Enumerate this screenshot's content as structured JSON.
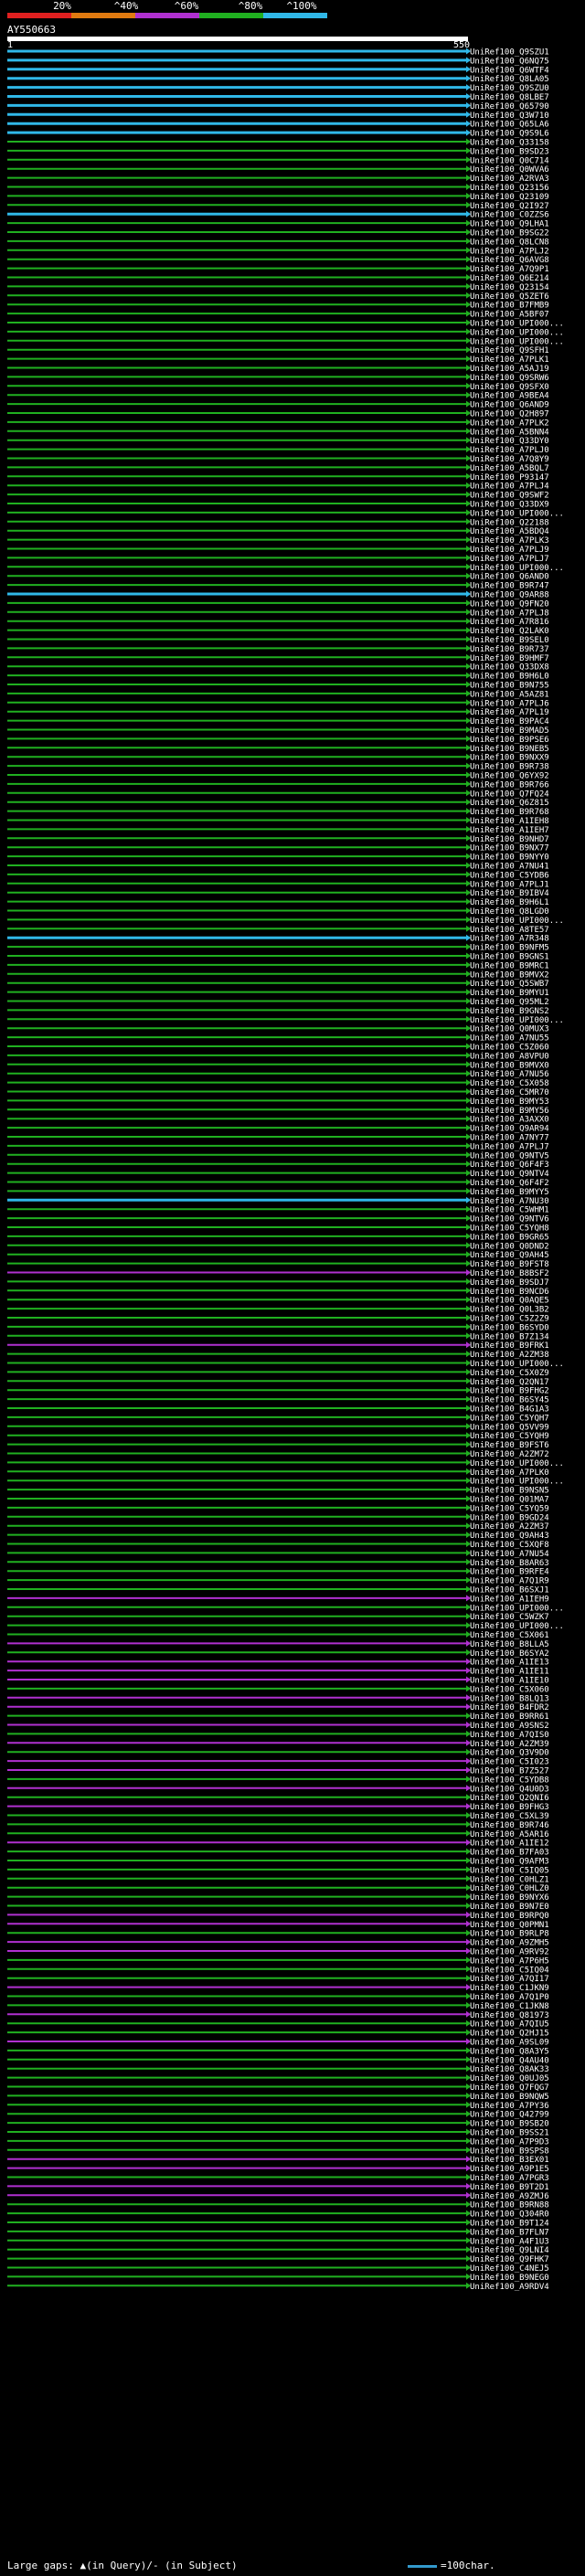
{
  "scale": {
    "ticks": [
      "20%",
      "^40%",
      "^60%",
      "^80%",
      "^100%"
    ],
    "colors": [
      "#e02020",
      "#e07a10",
      "#b030d0",
      "#20b020",
      "#30b8e8"
    ]
  },
  "query": {
    "name": "AY550663",
    "start": "1",
    "end": "550"
  },
  "hits": [
    {
      "label": "UniRef100_Q9SZU1",
      "c": 4
    },
    {
      "label": "UniRef100_Q6NQ75",
      "c": 4
    },
    {
      "label": "UniRef100_Q6WTF4",
      "c": 4
    },
    {
      "label": "UniRef100_Q8LA05",
      "c": 4
    },
    {
      "label": "UniRef100_Q9SZU0",
      "c": 4
    },
    {
      "label": "UniRef100_Q8LBE7",
      "c": 4
    },
    {
      "label": "UniRef100_Q65790",
      "c": 4
    },
    {
      "label": "UniRef100_Q3W710",
      "c": 4
    },
    {
      "label": "UniRef100_Q65LA6",
      "c": 4
    },
    {
      "label": "UniRef100_Q9S9L6",
      "c": 4
    },
    {
      "label": "UniRef100_Q33158",
      "c": 3
    },
    {
      "label": "UniRef100_B9SD23",
      "c": 3
    },
    {
      "label": "UniRef100_Q0C714",
      "c": 3
    },
    {
      "label": "UniRef100_Q0WVA6",
      "c": 3
    },
    {
      "label": "UniRef100_A2RVA3",
      "c": 3
    },
    {
      "label": "UniRef100_Q23156",
      "c": 3
    },
    {
      "label": "UniRef100_Q23109",
      "c": 3
    },
    {
      "label": "UniRef100_Q2I927",
      "c": 3
    },
    {
      "label": "UniRef100_C0ZZS6",
      "c": 4
    },
    {
      "label": "UniRef100_Q9LHA1",
      "c": 3
    },
    {
      "label": "UniRef100_B9SG22",
      "c": 3
    },
    {
      "label": "UniRef100_Q8LCN8",
      "c": 3
    },
    {
      "label": "UniRef100_A7PLJ2",
      "c": 3
    },
    {
      "label": "UniRef100_Q6AVG8",
      "c": 3
    },
    {
      "label": "UniRef100_A7Q9P1",
      "c": 3
    },
    {
      "label": "UniRef100_Q6E214",
      "c": 3
    },
    {
      "label": "UniRef100_Q23154",
      "c": 3
    },
    {
      "label": "UniRef100_Q5ZET6",
      "c": 3
    },
    {
      "label": "UniRef100_B7FMB9",
      "c": 3
    },
    {
      "label": "UniRef100_A5BF07",
      "c": 3
    },
    {
      "label": "UniRef100_UPI000...",
      "c": 3
    },
    {
      "label": "UniRef100_UPI000...",
      "c": 3
    },
    {
      "label": "UniRef100_UPI000...",
      "c": 3
    },
    {
      "label": "UniRef100_Q9SFH1",
      "c": 3
    },
    {
      "label": "UniRef100_A7PLK1",
      "c": 3
    },
    {
      "label": "UniRef100_A5AJ19",
      "c": 3
    },
    {
      "label": "UniRef100_Q9SRW6",
      "c": 3
    },
    {
      "label": "UniRef100_Q9SFX0",
      "c": 3
    },
    {
      "label": "UniRef100_A9BEA4",
      "c": 3
    },
    {
      "label": "UniRef100_Q6AND9",
      "c": 3
    },
    {
      "label": "UniRef100_Q2H897",
      "c": 3
    },
    {
      "label": "UniRef100_A7PLK2",
      "c": 3
    },
    {
      "label": "UniRef100_A5BNN4",
      "c": 3
    },
    {
      "label": "UniRef100_Q33DY0",
      "c": 3
    },
    {
      "label": "UniRef100_A7PLJ0",
      "c": 3
    },
    {
      "label": "UniRef100_A7Q8Y9",
      "c": 3
    },
    {
      "label": "UniRef100_A5BQL7",
      "c": 3
    },
    {
      "label": "UniRef100_P93147",
      "c": 3
    },
    {
      "label": "UniRef100_A7PLJ4",
      "c": 3
    },
    {
      "label": "UniRef100_Q9SWF2",
      "c": 3
    },
    {
      "label": "UniRef100_Q33DX9",
      "c": 3
    },
    {
      "label": "UniRef100_UPI000...",
      "c": 3
    },
    {
      "label": "UniRef100_Q22188",
      "c": 3
    },
    {
      "label": "UniRef100_A5BDQ4",
      "c": 3
    },
    {
      "label": "UniRef100_A7PLK3",
      "c": 3
    },
    {
      "label": "UniRef100_A7PLJ9",
      "c": 3
    },
    {
      "label": "UniRef100_A7PLJ7",
      "c": 3
    },
    {
      "label": "UniRef100_UPI000...",
      "c": 3
    },
    {
      "label": "UniRef100_Q6AND0",
      "c": 3
    },
    {
      "label": "UniRef100_B9R747",
      "c": 3
    },
    {
      "label": "UniRef100_Q9AR88",
      "c": 4
    },
    {
      "label": "UniRef100_Q9FN20",
      "c": 3
    },
    {
      "label": "UniRef100_A7PLJ8",
      "c": 3
    },
    {
      "label": "UniRef100_A7R816",
      "c": 3
    },
    {
      "label": "UniRef100_Q2LAK0",
      "c": 3
    },
    {
      "label": "UniRef100_B9SEL0",
      "c": 3
    },
    {
      "label": "UniRef100_B9R737",
      "c": 3
    },
    {
      "label": "UniRef100_B9HMF7",
      "c": 3
    },
    {
      "label": "UniRef100_Q33DX8",
      "c": 3
    },
    {
      "label": "UniRef100_B9H6L0",
      "c": 3
    },
    {
      "label": "UniRef100_B9N755",
      "c": 3
    },
    {
      "label": "UniRef100_A5AZ81",
      "c": 3
    },
    {
      "label": "UniRef100_A7PLJ6",
      "c": 3
    },
    {
      "label": "UniRef100_A7PL19",
      "c": 3
    },
    {
      "label": "UniRef100_B9PAC4",
      "c": 3
    },
    {
      "label": "UniRef100_B9MAD5",
      "c": 3
    },
    {
      "label": "UniRef100_B9PSE6",
      "c": 3
    },
    {
      "label": "UniRef100_B9NEB5",
      "c": 3
    },
    {
      "label": "UniRef100_B9NXX9",
      "c": 3
    },
    {
      "label": "UniRef100_B9R738",
      "c": 3
    },
    {
      "label": "UniRef100_Q6YX92",
      "c": 3
    },
    {
      "label": "UniRef100_B9R766",
      "c": 3
    },
    {
      "label": "UniRef100_Q7FQ24",
      "c": 3
    },
    {
      "label": "UniRef100_Q6Z815",
      "c": 3
    },
    {
      "label": "UniRef100_B9R768",
      "c": 3
    },
    {
      "label": "UniRef100_A1IEH8",
      "c": 3
    },
    {
      "label": "UniRef100_A1IEH7",
      "c": 3
    },
    {
      "label": "UniRef100_B9NHD7",
      "c": 3
    },
    {
      "label": "UniRef100_B9NX77",
      "c": 3
    },
    {
      "label": "UniRef100_B9NYY0",
      "c": 3
    },
    {
      "label": "UniRef100_A7NU41",
      "c": 3
    },
    {
      "label": "UniRef100_C5YDB6",
      "c": 3
    },
    {
      "label": "UniRef100_A7PLJ1",
      "c": 3
    },
    {
      "label": "UniRef100_B9IBV4",
      "c": 3
    },
    {
      "label": "UniRef100_B9H6L1",
      "c": 3
    },
    {
      "label": "UniRef100_Q8LGD0",
      "c": 3
    },
    {
      "label": "UniRef100_UPI000...",
      "c": 3
    },
    {
      "label": "UniRef100_A8TE57",
      "c": 3
    },
    {
      "label": "UniRef100_A7R348",
      "c": 4
    },
    {
      "label": "UniRef100_B9NFM5",
      "c": 3
    },
    {
      "label": "UniRef100_B9GNS1",
      "c": 3
    },
    {
      "label": "UniRef100_B9MRC1",
      "c": 3
    },
    {
      "label": "UniRef100_B9MVX2",
      "c": 3
    },
    {
      "label": "UniRef100_Q5SWB7",
      "c": 3
    },
    {
      "label": "UniRef100_B9MYU1",
      "c": 3
    },
    {
      "label": "UniRef100_Q95ML2",
      "c": 3
    },
    {
      "label": "UniRef100_B9GNS2",
      "c": 3
    },
    {
      "label": "UniRef100_UPI000...",
      "c": 3
    },
    {
      "label": "UniRef100_Q0MUX3",
      "c": 3
    },
    {
      "label": "UniRef100_A7NU55",
      "c": 3
    },
    {
      "label": "UniRef100_C5Z060",
      "c": 3
    },
    {
      "label": "UniRef100_A8VPU0",
      "c": 3
    },
    {
      "label": "UniRef100_B9MVX0",
      "c": 3
    },
    {
      "label": "UniRef100_A7NU56",
      "c": 3
    },
    {
      "label": "UniRef100_C5X058",
      "c": 3
    },
    {
      "label": "UniRef100_C5MR70",
      "c": 3
    },
    {
      "label": "UniRef100_B9MY53",
      "c": 3
    },
    {
      "label": "UniRef100_B9MY56",
      "c": 3
    },
    {
      "label": "UniRef100_A3AXX0",
      "c": 3
    },
    {
      "label": "UniRef100_Q9AR94",
      "c": 3
    },
    {
      "label": "UniRef100_A7NY77",
      "c": 3
    },
    {
      "label": "UniRef100_A7PLJ7",
      "c": 3
    },
    {
      "label": "UniRef100_Q9NTV5",
      "c": 3
    },
    {
      "label": "UniRef100_Q6F4F3",
      "c": 3
    },
    {
      "label": "UniRef100_Q9NTV4",
      "c": 3
    },
    {
      "label": "UniRef100_Q6F4F2",
      "c": 3
    },
    {
      "label": "UniRef100_B9MYY5",
      "c": 3
    },
    {
      "label": "UniRef100_A7NU30",
      "c": 4
    },
    {
      "label": "UniRef100_C5WHM1",
      "c": 3
    },
    {
      "label": "UniRef100_Q9NTV6",
      "c": 3
    },
    {
      "label": "UniRef100_C5YQH8",
      "c": 3
    },
    {
      "label": "UniRef100_B9GR65",
      "c": 3
    },
    {
      "label": "UniRef100_Q0DND2",
      "c": 3
    },
    {
      "label": "UniRef100_Q9AH45",
      "c": 3
    },
    {
      "label": "UniRef100_B9FST8",
      "c": 3
    },
    {
      "label": "UniRef100_B8BSF2",
      "c": 2
    },
    {
      "label": "UniRef100_B9SDJ7",
      "c": 3
    },
    {
      "label": "UniRef100_B9NCD6",
      "c": 3
    },
    {
      "label": "UniRef100_Q0AQE5",
      "c": 3
    },
    {
      "label": "UniRef100_Q0L3B2",
      "c": 3
    },
    {
      "label": "UniRef100_C5Z2Z9",
      "c": 3
    },
    {
      "label": "UniRef100_B6SYD0",
      "c": 3
    },
    {
      "label": "UniRef100_B7Z134",
      "c": 3
    },
    {
      "label": "UniRef100_B9FRK1",
      "c": 2
    },
    {
      "label": "UniRef100_A2ZM38",
      "c": 3
    },
    {
      "label": "UniRef100_UPI000...",
      "c": 3
    },
    {
      "label": "UniRef100_C5X0Z9",
      "c": 3
    },
    {
      "label": "UniRef100_Q2QN17",
      "c": 3
    },
    {
      "label": "UniRef100_B9FHG2",
      "c": 3
    },
    {
      "label": "UniRef100_B6SY45",
      "c": 3
    },
    {
      "label": "UniRef100_B4G1A3",
      "c": 3
    },
    {
      "label": "UniRef100_C5YQH7",
      "c": 3
    },
    {
      "label": "UniRef100_Q5VV99",
      "c": 3
    },
    {
      "label": "UniRef100_C5YQH9",
      "c": 3
    },
    {
      "label": "UniRef100_B9FST6",
      "c": 3
    },
    {
      "label": "UniRef100_A2ZM72",
      "c": 3
    },
    {
      "label": "UniRef100_UPI000...",
      "c": 3
    },
    {
      "label": "UniRef100_A7PLK0",
      "c": 3
    },
    {
      "label": "UniRef100_UPI000...",
      "c": 3
    },
    {
      "label": "UniRef100_B9NSN5",
      "c": 3
    },
    {
      "label": "UniRef100_Q01MA7",
      "c": 3
    },
    {
      "label": "UniRef100_C5YQ59",
      "c": 3
    },
    {
      "label": "UniRef100_B9GD24",
      "c": 3
    },
    {
      "label": "UniRef100_A2ZM37",
      "c": 3
    },
    {
      "label": "UniRef100_Q9AH43",
      "c": 3
    },
    {
      "label": "UniRef100_C5XQF8",
      "c": 3
    },
    {
      "label": "UniRef100_A7NU54",
      "c": 3
    },
    {
      "label": "UniRef100_B8AR63",
      "c": 3
    },
    {
      "label": "UniRef100_B9RFE4",
      "c": 3
    },
    {
      "label": "UniRef100_A7Q1R9",
      "c": 3
    },
    {
      "label": "UniRef100_B6SXJ1",
      "c": 3
    },
    {
      "label": "UniRef100_A1IEH9",
      "c": 2
    },
    {
      "label": "UniRef100_UPI000...",
      "c": 3
    },
    {
      "label": "UniRef100_C5WZK7",
      "c": 3
    },
    {
      "label": "UniRef100_UPI000...",
      "c": 3
    },
    {
      "label": "UniRef100_C5X061",
      "c": 3
    },
    {
      "label": "UniRef100_B8LLA5",
      "c": 2
    },
    {
      "label": "UniRef100_B6SYA2",
      "c": 3
    },
    {
      "label": "UniRef100_A1IE13",
      "c": 2
    },
    {
      "label": "UniRef100_A1IE11",
      "c": 2
    },
    {
      "label": "UniRef100_A1IE10",
      "c": 2
    },
    {
      "label": "UniRef100_C5X060",
      "c": 3
    },
    {
      "label": "UniRef100_B8LQ13",
      "c": 2
    },
    {
      "label": "UniRef100_B4FDR2",
      "c": 2
    },
    {
      "label": "UniRef100_B9RR61",
      "c": 3
    },
    {
      "label": "UniRef100_A9SNS2",
      "c": 2
    },
    {
      "label": "UniRef100_A7QIS0",
      "c": 3
    },
    {
      "label": "UniRef100_A2ZM39",
      "c": 2
    },
    {
      "label": "UniRef100_Q3V9D0",
      "c": 3
    },
    {
      "label": "UniRef100_C5I023",
      "c": 2
    },
    {
      "label": "UniRef100_B7Z527",
      "c": 2
    },
    {
      "label": "UniRef100_C5YDB8",
      "c": 3
    },
    {
      "label": "UniRef100_Q4U0D3",
      "c": 2
    },
    {
      "label": "UniRef100_Q2QNI6",
      "c": 3
    },
    {
      "label": "UniRef100_B9FHG3",
      "c": 2
    },
    {
      "label": "UniRef100_C5XL39",
      "c": 3
    },
    {
      "label": "UniRef100_B9R746",
      "c": 3
    },
    {
      "label": "UniRef100_A5AR16",
      "c": 3
    },
    {
      "label": "UniRef100_A1IE12",
      "c": 2
    },
    {
      "label": "UniRef100_B7FA03",
      "c": 3
    },
    {
      "label": "UniRef100_Q9AFM3",
      "c": 3
    },
    {
      "label": "UniRef100_C5IQ05",
      "c": 3
    },
    {
      "label": "UniRef100_C0HLZ1",
      "c": 3
    },
    {
      "label": "UniRef100_C0HLZ0",
      "c": 3
    },
    {
      "label": "UniRef100_B9NYX6",
      "c": 3
    },
    {
      "label": "UniRef100_B9N7E0",
      "c": 3
    },
    {
      "label": "UniRef100_B9RPQ0",
      "c": 2
    },
    {
      "label": "UniRef100_Q0PMN1",
      "c": 2
    },
    {
      "label": "UniRef100_B9RLP8",
      "c": 3
    },
    {
      "label": "UniRef100_A9ZMH5",
      "c": 2
    },
    {
      "label": "UniRef100_A9RV92",
      "c": 2
    },
    {
      "label": "UniRef100_A7P6H5",
      "c": 3
    },
    {
      "label": "UniRef100_C5IQ04",
      "c": 3
    },
    {
      "label": "UniRef100_A7QI17",
      "c": 3
    },
    {
      "label": "UniRef100_C1JKN9",
      "c": 2
    },
    {
      "label": "UniRef100_A7Q1P0",
      "c": 3
    },
    {
      "label": "UniRef100_C1JKN8",
      "c": 3
    },
    {
      "label": "UniRef100_Q81973",
      "c": 2
    },
    {
      "label": "UniRef100_A7QIU5",
      "c": 3
    },
    {
      "label": "UniRef100_Q2HJ15",
      "c": 3
    },
    {
      "label": "UniRef100_A9SL09",
      "c": 2
    },
    {
      "label": "UniRef100_Q8A3Y5",
      "c": 3
    },
    {
      "label": "UniRef100_Q4AU40",
      "c": 3
    },
    {
      "label": "UniRef100_Q8AK33",
      "c": 3
    },
    {
      "label": "UniRef100_Q0UJ05",
      "c": 3
    },
    {
      "label": "UniRef100_Q7FQG7",
      "c": 3
    },
    {
      "label": "UniRef100_B9NQW5",
      "c": 3
    },
    {
      "label": "UniRef100_A7PY36",
      "c": 3
    },
    {
      "label": "UniRef100_Q42799",
      "c": 3
    },
    {
      "label": "UniRef100_B9SB20",
      "c": 3
    },
    {
      "label": "UniRef100_B9SS21",
      "c": 3
    },
    {
      "label": "UniRef100_A7P9D3",
      "c": 3
    },
    {
      "label": "UniRef100_B9SPS8",
      "c": 3
    },
    {
      "label": "UniRef100_B3EX01",
      "c": 2
    },
    {
      "label": "UniRef100_A9P1E5",
      "c": 2
    },
    {
      "label": "UniRef100_A7PGR3",
      "c": 3
    },
    {
      "label": "UniRef100_B9T2D1",
      "c": 2
    },
    {
      "label": "UniRef100_A9ZMJ6",
      "c": 2
    },
    {
      "label": "UniRef100_B9RN88",
      "c": 3
    },
    {
      "label": "UniRef100_Q304R0",
      "c": 3
    },
    {
      "label": "UniRef100_B9T124",
      "c": 3
    },
    {
      "label": "UniRef100_B7FLN7",
      "c": 3
    },
    {
      "label": "UniRef100_A4F1U3",
      "c": 3
    },
    {
      "label": "UniRef100_Q9LNI4",
      "c": 3
    },
    {
      "label": "UniRef100_Q9FHK7",
      "c": 3
    },
    {
      "label": "UniRef100_C4NEJ5",
      "c": 3
    },
    {
      "label": "UniRef100_B9NEG0",
      "c": 3
    },
    {
      "label": "UniRef100_A9RDV4",
      "c": 3
    }
  ],
  "legend": {
    "gaps": "Large gaps: ▲(in Query)/- (in Subject)",
    "scale": "=100char."
  }
}
